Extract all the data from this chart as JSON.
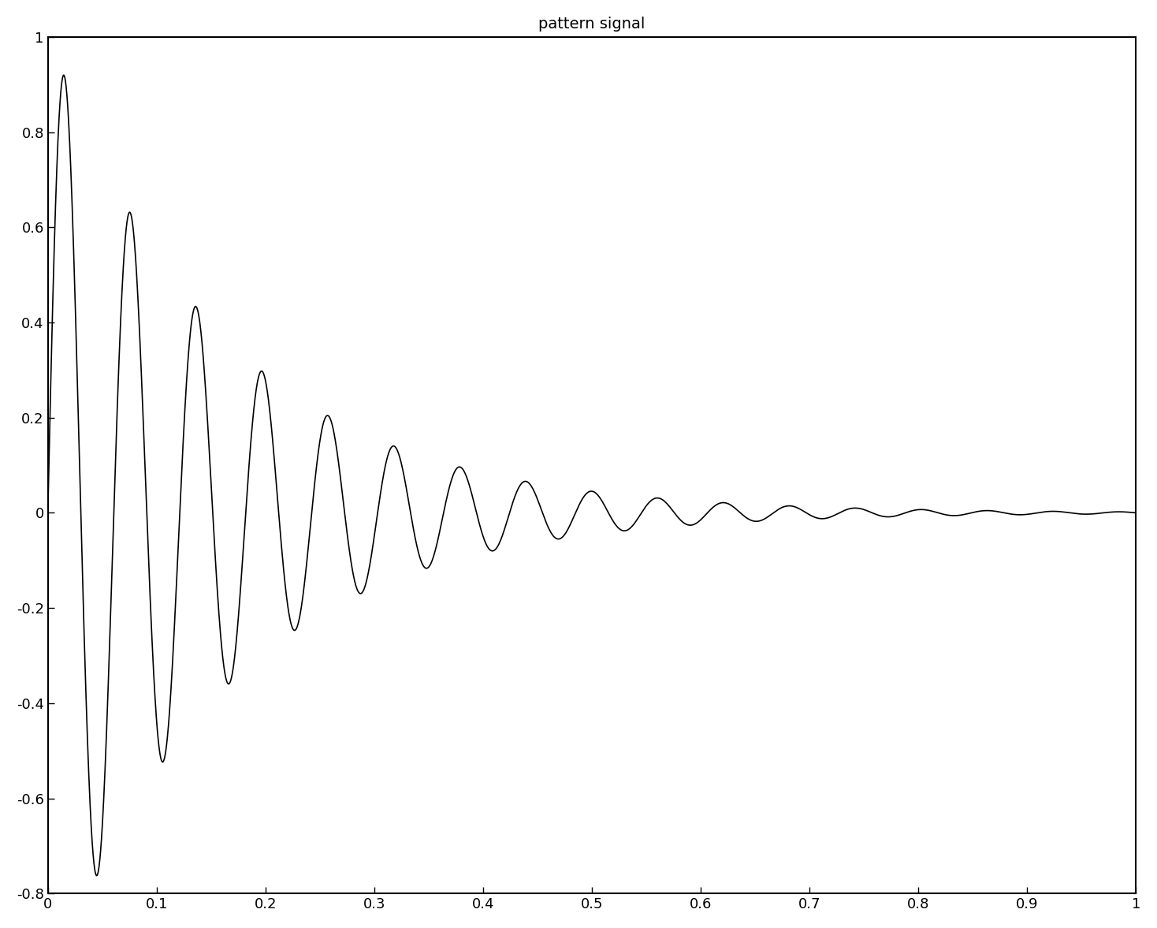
{
  "title": "pattern signal",
  "xlim": [
    0,
    1
  ],
  "ylim": [
    -0.8,
    1.0
  ],
  "xticks": [
    0,
    0.1,
    0.2,
    0.3,
    0.4,
    0.5,
    0.6,
    0.7,
    0.8,
    0.9,
    1
  ],
  "yticks": [
    -0.8,
    -0.6,
    -0.4,
    -0.2,
    0,
    0.2,
    0.4,
    0.6,
    0.8,
    1
  ],
  "line_color": "#000000",
  "background_color": "#ffffff",
  "title_fontsize": 14,
  "signal_duration": 1.0,
  "sample_rate": 4096,
  "damping": 5.0,
  "freq": 20.0,
  "initial_amplitude": 1.0
}
